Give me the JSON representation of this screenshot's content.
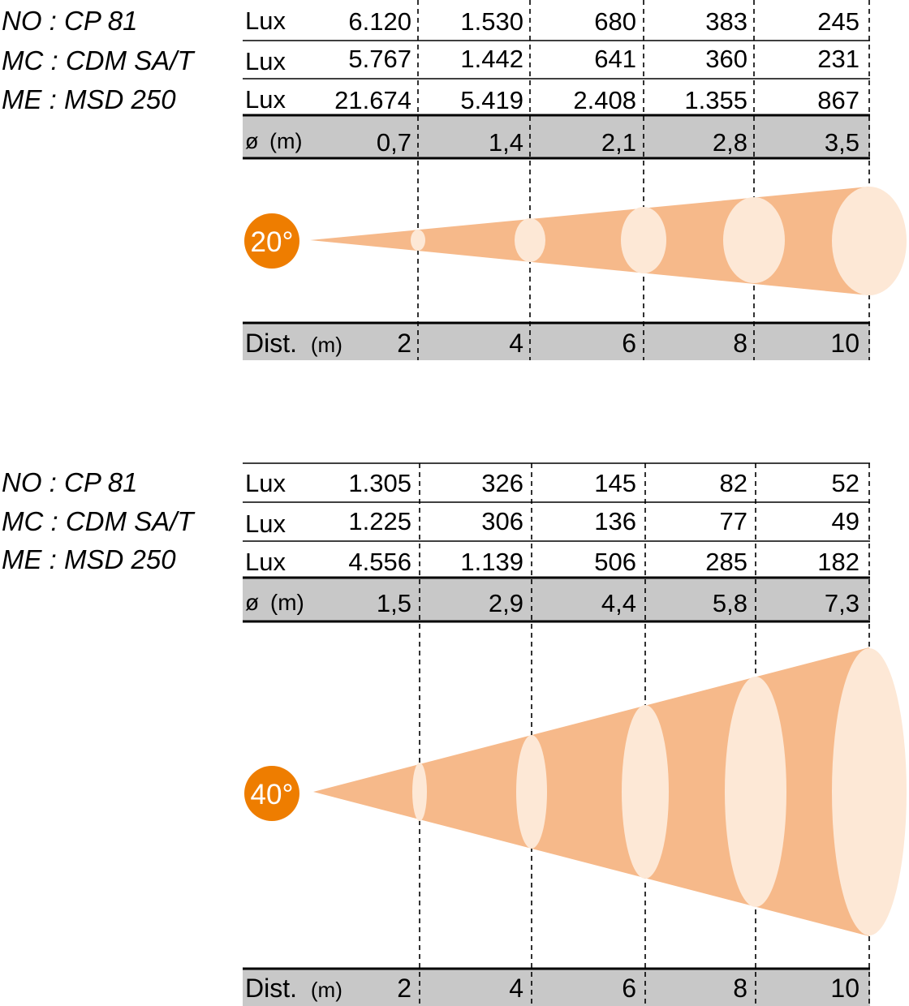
{
  "panels": [
    {
      "angle_label": "20°",
      "lamps": [
        {
          "name": "NO : CP 81",
          "unit": "Lux",
          "values": [
            "6.120",
            "1.530",
            "680",
            "383",
            "245"
          ]
        },
        {
          "name": "MC : CDM SA/T",
          "unit": "Lux",
          "values": [
            "5.767",
            "1.442",
            "641",
            "360",
            "231"
          ]
        },
        {
          "name": "ME : MSD 250",
          "unit": "Lux",
          "values": [
            "21.674",
            "5.419",
            "2.408",
            "1.355",
            "867"
          ]
        }
      ],
      "diameter": {
        "label": "ø",
        "unit": "(m)",
        "values": [
          "0,7",
          "1,4",
          "2,1",
          "2,8",
          "3,5"
        ]
      },
      "distance": {
        "label": "Dist.",
        "unit": "(m)",
        "values": [
          "2",
          "4",
          "6",
          "8",
          "10"
        ]
      }
    },
    {
      "angle_label": "40°",
      "lamps": [
        {
          "name": "NO : CP 81",
          "unit": "Lux",
          "values": [
            "1.305",
            "326",
            "145",
            "82",
            "52"
          ]
        },
        {
          "name": "MC : CDM SA/T",
          "unit": "Lux",
          "values": [
            "1.225",
            "306",
            "136",
            "77",
            "49"
          ]
        },
        {
          "name": "ME : MSD 250",
          "unit": "Lux",
          "values": [
            "4.556",
            "1.139",
            "506",
            "285",
            "182"
          ]
        }
      ],
      "diameter": {
        "label": "ø",
        "unit": "(m)",
        "values": [
          "1,5",
          "2,9",
          "4,4",
          "5,8",
          "7,3"
        ]
      },
      "distance": {
        "label": "Dist.",
        "unit": "(m)",
        "values": [
          "2",
          "4",
          "6",
          "8",
          "10"
        ]
      }
    }
  ],
  "colors": {
    "badge": "#ee7d00",
    "cone": "#f6b98a",
    "spot": "#fde8d6",
    "band": "#c8c8c8",
    "line": "#000000"
  }
}
